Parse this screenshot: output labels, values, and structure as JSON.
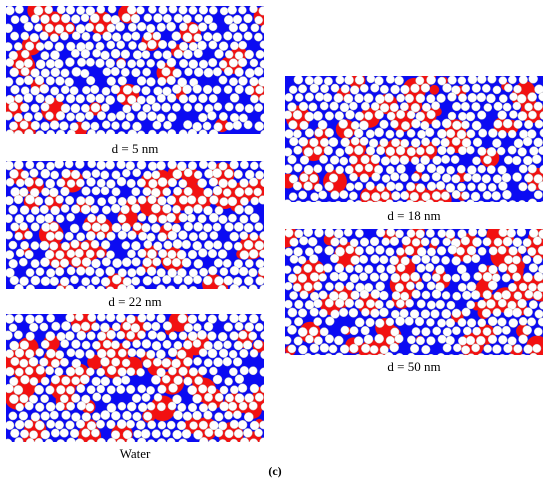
{
  "colors": {
    "matrix": "#0b0bf2",
    "particle_fill": "#ffffff",
    "particle_edge": "#c8c8c8",
    "water_phase": "#f21111"
  },
  "panels": [
    {
      "id": "d5",
      "caption": "d = 5 nm",
      "water_fraction": 0.22
    },
    {
      "id": "d18",
      "caption": "d = 18 nm",
      "water_fraction": 0.45
    },
    {
      "id": "d22",
      "caption": "d = 22 nm",
      "water_fraction": 0.4
    },
    {
      "id": "d50",
      "caption": "d = 50 nm",
      "water_fraction": 0.45
    },
    {
      "id": "water",
      "caption": "Water",
      "water_fraction": 0.45
    }
  ],
  "figure_label": "(c)"
}
